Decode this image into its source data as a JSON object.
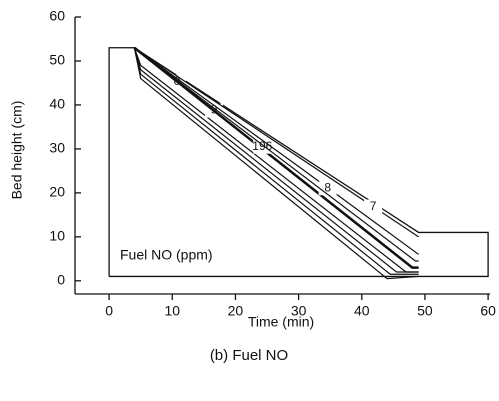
{
  "chart_data": {
    "type": "contour",
    "x_label": "Time (min)",
    "y_label": "Bed height (cm)",
    "annotation": "Fuel NO (ppm)",
    "caption": "(b) Fuel NO",
    "xlim": [
      -5.4,
      60.3
    ],
    "ylim": [
      -3,
      60
    ],
    "xticks": [
      0,
      10,
      20,
      30,
      40,
      50,
      60
    ],
    "yticks": [
      0,
      10,
      20,
      30,
      40,
      50,
      60
    ],
    "bed_outline": {
      "x": [
        0,
        0,
        4,
        49,
        60,
        60,
        0
      ],
      "y": [
        1,
        53,
        53,
        11,
        11,
        1,
        1
      ]
    },
    "contours": [
      {
        "label": 0,
        "x": [
          4,
          5,
          44.5,
          49
        ],
        "y": [
          53,
          47,
          1.5,
          1.5
        ]
      },
      {
        "label": 9,
        "x": [
          4,
          5,
          47,
          49
        ],
        "y": [
          53,
          49,
          2,
          2
        ]
      },
      {
        "label": 196,
        "x": [
          4,
          48,
          49
        ],
        "y": [
          53,
          3,
          3
        ]
      },
      {
        "label": 8,
        "x": [
          4,
          30,
          49
        ],
        "y": [
          53,
          26,
          6
        ]
      },
      {
        "label": 7,
        "x": [
          4,
          49
        ],
        "y": [
          53,
          10
        ]
      },
      {
        "label": null,
        "x": [
          4,
          5,
          44,
          49
        ],
        "y": [
          53,
          46,
          0.5,
          1
        ]
      },
      {
        "label": null,
        "x": [
          4,
          5,
          45.5,
          49
        ],
        "y": [
          53,
          48,
          2,
          2
        ]
      },
      {
        "label": null,
        "x": [
          4,
          48.5,
          49
        ],
        "y": [
          53,
          4.5,
          4.5
        ]
      }
    ]
  }
}
